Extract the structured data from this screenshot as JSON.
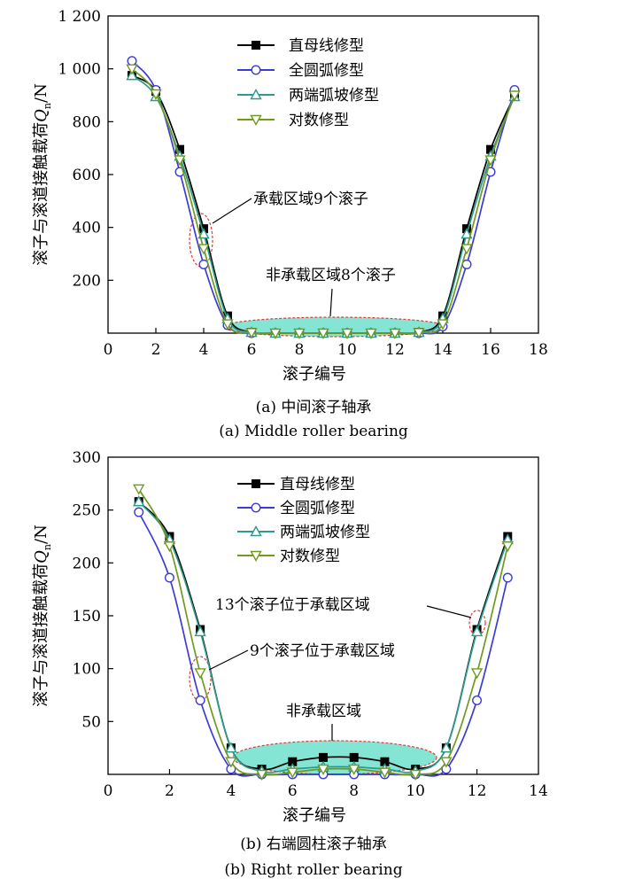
{
  "legend_labels": [
    "直母线修型",
    "全圆弧修型",
    "两端弧坡修型",
    "对数修型"
  ],
  "chart_data": [
    {
      "type": "line",
      "ylabel": "滚子与滚道接触载荷Qn/N",
      "ylabel_main": "滚子与滚道接触载荷",
      "ylabel_sym": "Q",
      "ylabel_sub": "n",
      "ylabel_unit": "/N",
      "xlabel": "滚子编号",
      "caption_cn": "(a) 中间滚子轴承",
      "caption_en": "(a) Middle roller bearing",
      "xlim": [
        0,
        18
      ],
      "ylim": [
        0,
        1200
      ],
      "xticks": [
        0,
        2,
        4,
        6,
        8,
        10,
        12,
        14,
        16,
        18
      ],
      "yticks": [
        200,
        400,
        600,
        800,
        1000,
        1200
      ],
      "ytick_labels": [
        "200",
        "400",
        "600",
        "800",
        "1 000",
        "1 200"
      ],
      "x": [
        1,
        2,
        3,
        4,
        5,
        6,
        7,
        8,
        9,
        10,
        11,
        12,
        13,
        14,
        15,
        16,
        17
      ],
      "series": [
        {
          "name": "直母线修型",
          "color": "#000000",
          "marker": "square",
          "values": [
            975,
            915,
            695,
            395,
            65,
            3,
            0,
            0,
            0,
            0,
            0,
            0,
            3,
            65,
            395,
            695,
            900
          ]
        },
        {
          "name": "全圆弧修型",
          "color": "#3b3bd6",
          "marker": "circle",
          "values": [
            1030,
            920,
            610,
            260,
            30,
            0,
            0,
            0,
            0,
            0,
            0,
            0,
            0,
            25,
            260,
            610,
            920
          ]
        },
        {
          "name": "两端弧坡修型",
          "color": "#2e9a8c",
          "marker": "triangle-up",
          "values": [
            975,
            895,
            670,
            375,
            55,
            3,
            0,
            0,
            0,
            0,
            0,
            0,
            3,
            55,
            375,
            670,
            895
          ]
        },
        {
          "name": "对数修型",
          "color": "#6f9a1e",
          "marker": "triangle-down",
          "values": [
            1000,
            905,
            655,
            320,
            35,
            2,
            0,
            0,
            0,
            0,
            0,
            0,
            2,
            35,
            320,
            655,
            900
          ]
        }
      ],
      "annotations": [
        {
          "text": "承载区域9个滚子"
        },
        {
          "text": "非承载区域8个滚子"
        }
      ]
    },
    {
      "type": "line",
      "ylabel": "滚子与滚道接触载荷Qn/N",
      "ylabel_main": "滚子与滚道接触载荷",
      "ylabel_sym": "Q",
      "ylabel_sub": "n",
      "ylabel_unit": "/N",
      "xlabel": "滚子编号",
      "caption_cn": "(b) 右端圆柱滚子轴承",
      "caption_en": "(b) Right roller bearing",
      "xlim": [
        0,
        14
      ],
      "ylim": [
        0,
        300
      ],
      "xticks": [
        0,
        2,
        4,
        6,
        8,
        10,
        12,
        14
      ],
      "yticks": [
        50,
        100,
        150,
        200,
        250,
        300
      ],
      "ytick_labels": [
        "50",
        "100",
        "150",
        "200",
        "250",
        "300"
      ],
      "x": [
        1,
        2,
        3,
        4,
        5,
        6,
        7,
        8,
        9,
        10,
        11,
        12,
        13
      ],
      "series": [
        {
          "name": "直母线修型",
          "color": "#000000",
          "marker": "square",
          "values": [
            258,
            225,
            137,
            25,
            5,
            12,
            16,
            16,
            12,
            5,
            25,
            137,
            225
          ]
        },
        {
          "name": "全圆弧修型",
          "color": "#3b3bd6",
          "marker": "circle",
          "values": [
            248,
            186,
            70,
            5,
            0,
            0,
            0,
            0,
            0,
            0,
            5,
            70,
            186
          ]
        },
        {
          "name": "两端弧坡修型",
          "color": "#2e9a8c",
          "marker": "triangle-up",
          "values": [
            258,
            222,
            135,
            25,
            3,
            5,
            7,
            7,
            5,
            3,
            25,
            135,
            222
          ]
        },
        {
          "name": "对数修型",
          "color": "#6f9a1e",
          "marker": "triangle-down",
          "values": [
            270,
            216,
            96,
            12,
            0,
            2,
            5,
            5,
            2,
            0,
            12,
            96,
            216
          ]
        }
      ],
      "annotations": [
        {
          "text": "13个滚子位于承载区域"
        },
        {
          "text": "9个滚子位于承载区域"
        },
        {
          "text": "非承载区域"
        }
      ]
    }
  ]
}
